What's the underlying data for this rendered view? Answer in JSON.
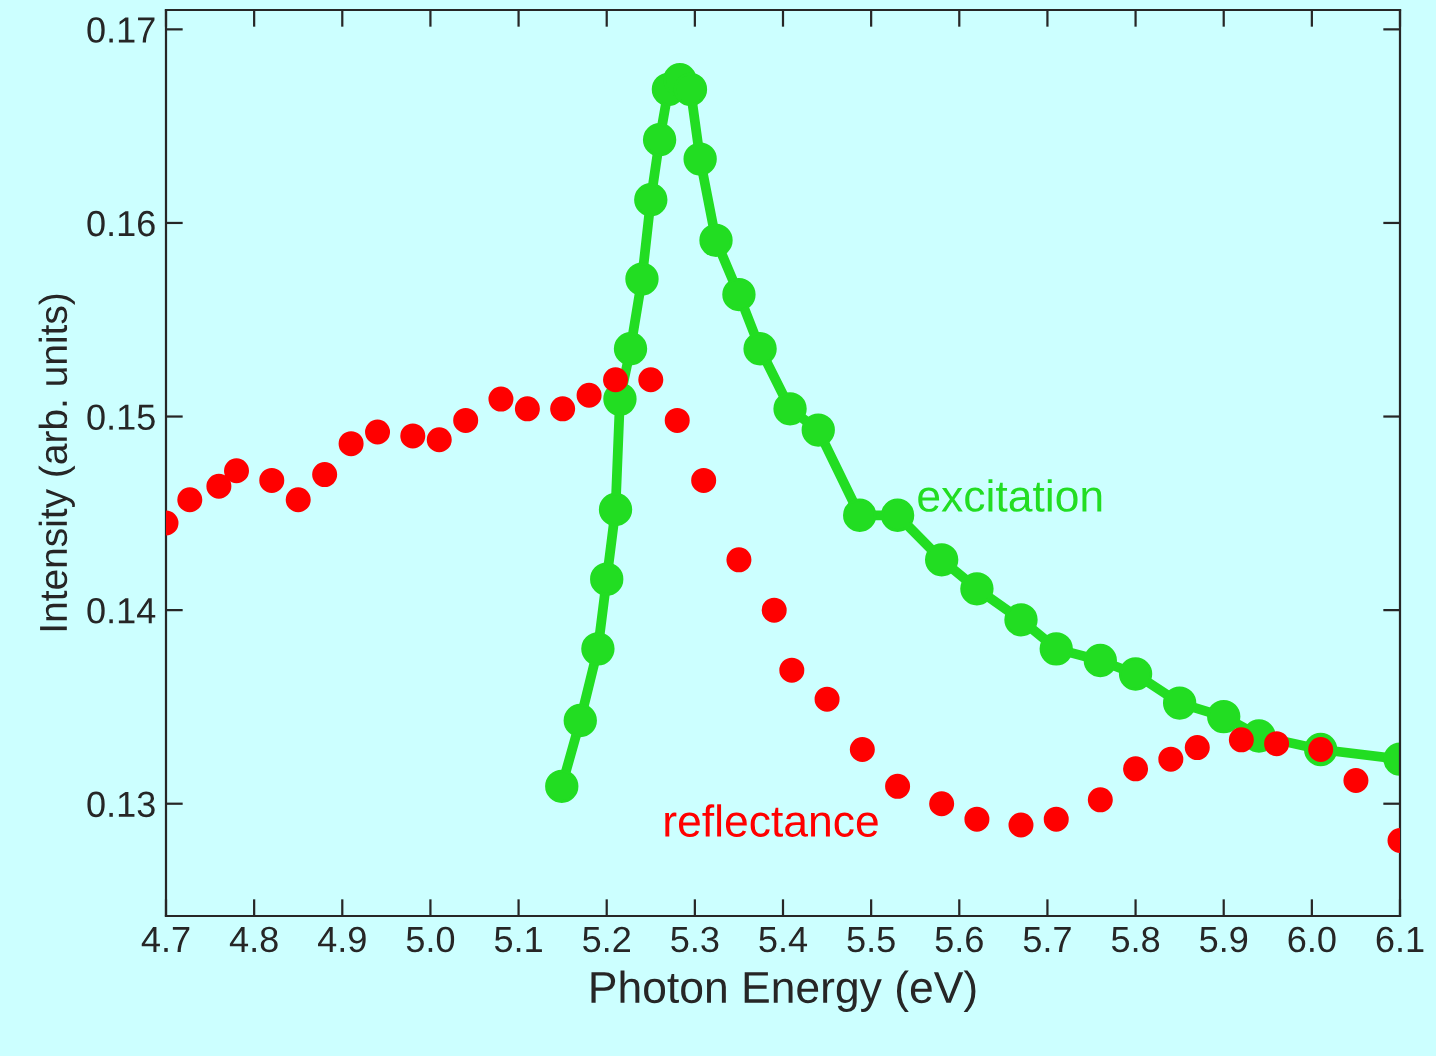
{
  "chart_data": {
    "type": "scatter",
    "xlabel": "Photon Energy (eV)",
    "ylabel": "Intensity (arb. units)",
    "xlim": [
      4.7,
      6.1
    ],
    "ylim": [
      0.1242,
      0.171
    ],
    "xticks": [
      {
        "value": 4.7,
        "label": "4.7"
      },
      {
        "value": 4.8,
        "label": "4.8"
      },
      {
        "value": 4.9,
        "label": "4.9"
      },
      {
        "value": 5.0,
        "label": "5.0"
      },
      {
        "value": 5.1,
        "label": "5.1"
      },
      {
        "value": 5.2,
        "label": "5.2"
      },
      {
        "value": 5.3,
        "label": "5.3"
      },
      {
        "value": 5.4,
        "label": "5.4"
      },
      {
        "value": 5.5,
        "label": "5.5"
      },
      {
        "value": 5.6,
        "label": "5.6"
      },
      {
        "value": 5.7,
        "label": "5.7"
      },
      {
        "value": 5.8,
        "label": "5.8"
      },
      {
        "value": 5.9,
        "label": "5.9"
      },
      {
        "value": 6.0,
        "label": "6.0"
      },
      {
        "value": 6.1,
        "label": "6.1"
      }
    ],
    "yticks": [
      0.13,
      0.14,
      0.15,
      0.16,
      0.17
    ],
    "grid": false,
    "legend": false,
    "marker": "circle",
    "series": [
      {
        "name": "reflectance",
        "color": "#ff0000",
        "x": [
          4.7,
          4.727,
          4.76,
          4.78,
          4.82,
          4.85,
          4.88,
          4.91,
          4.94,
          4.98,
          5.01,
          5.04,
          5.08,
          5.11,
          5.15,
          5.18,
          5.21,
          5.25,
          5.28,
          5.31,
          5.35,
          5.39,
          5.41,
          5.45,
          5.49,
          5.53,
          5.58,
          5.62,
          5.67,
          5.71,
          5.76,
          5.8,
          5.84,
          5.87,
          5.92,
          5.96,
          6.01,
          6.05,
          6.1
        ],
        "values": [
          0.1445,
          0.1457,
          0.1464,
          0.1472,
          0.1467,
          0.1457,
          0.147,
          0.1486,
          0.1492,
          0.149,
          0.1488,
          0.1498,
          0.1509,
          0.1504,
          0.1504,
          0.1511,
          0.1519,
          0.1519,
          0.1498,
          0.1467,
          0.1426,
          0.14,
          0.1369,
          0.1354,
          0.1328,
          0.1309,
          0.13,
          0.1292,
          0.1289,
          0.1292,
          0.1302,
          0.1318,
          0.1323,
          0.1329,
          0.1333,
          0.1331,
          0.1328,
          0.1312,
          0.1281
        ]
      },
      {
        "name": "excitation",
        "color": "#22dd22",
        "type": "line",
        "x": [
          5.149,
          5.17,
          5.19,
          5.2,
          5.21,
          5.215,
          5.227,
          5.24,
          5.25,
          5.26,
          5.27,
          5.283,
          5.295,
          5.306,
          5.324,
          5.35,
          5.374,
          5.408,
          5.44,
          5.487,
          5.53,
          5.58,
          5.62,
          5.67,
          5.71,
          5.76,
          5.8,
          5.85,
          5.9,
          5.94,
          6.01,
          6.1
        ],
        "values": [
          0.1309,
          0.1343,
          0.138,
          0.1416,
          0.1452,
          0.1509,
          0.1535,
          0.1571,
          0.1612,
          0.1643,
          0.1669,
          0.1674,
          0.1669,
          0.1633,
          0.1591,
          0.1563,
          0.1535,
          0.1504,
          0.1493,
          0.1449,
          0.1449,
          0.1426,
          0.1411,
          0.1395,
          0.138,
          0.1374,
          0.1367,
          0.1352,
          0.1345,
          0.1335,
          0.1328,
          0.1323
        ]
      }
    ]
  }
}
